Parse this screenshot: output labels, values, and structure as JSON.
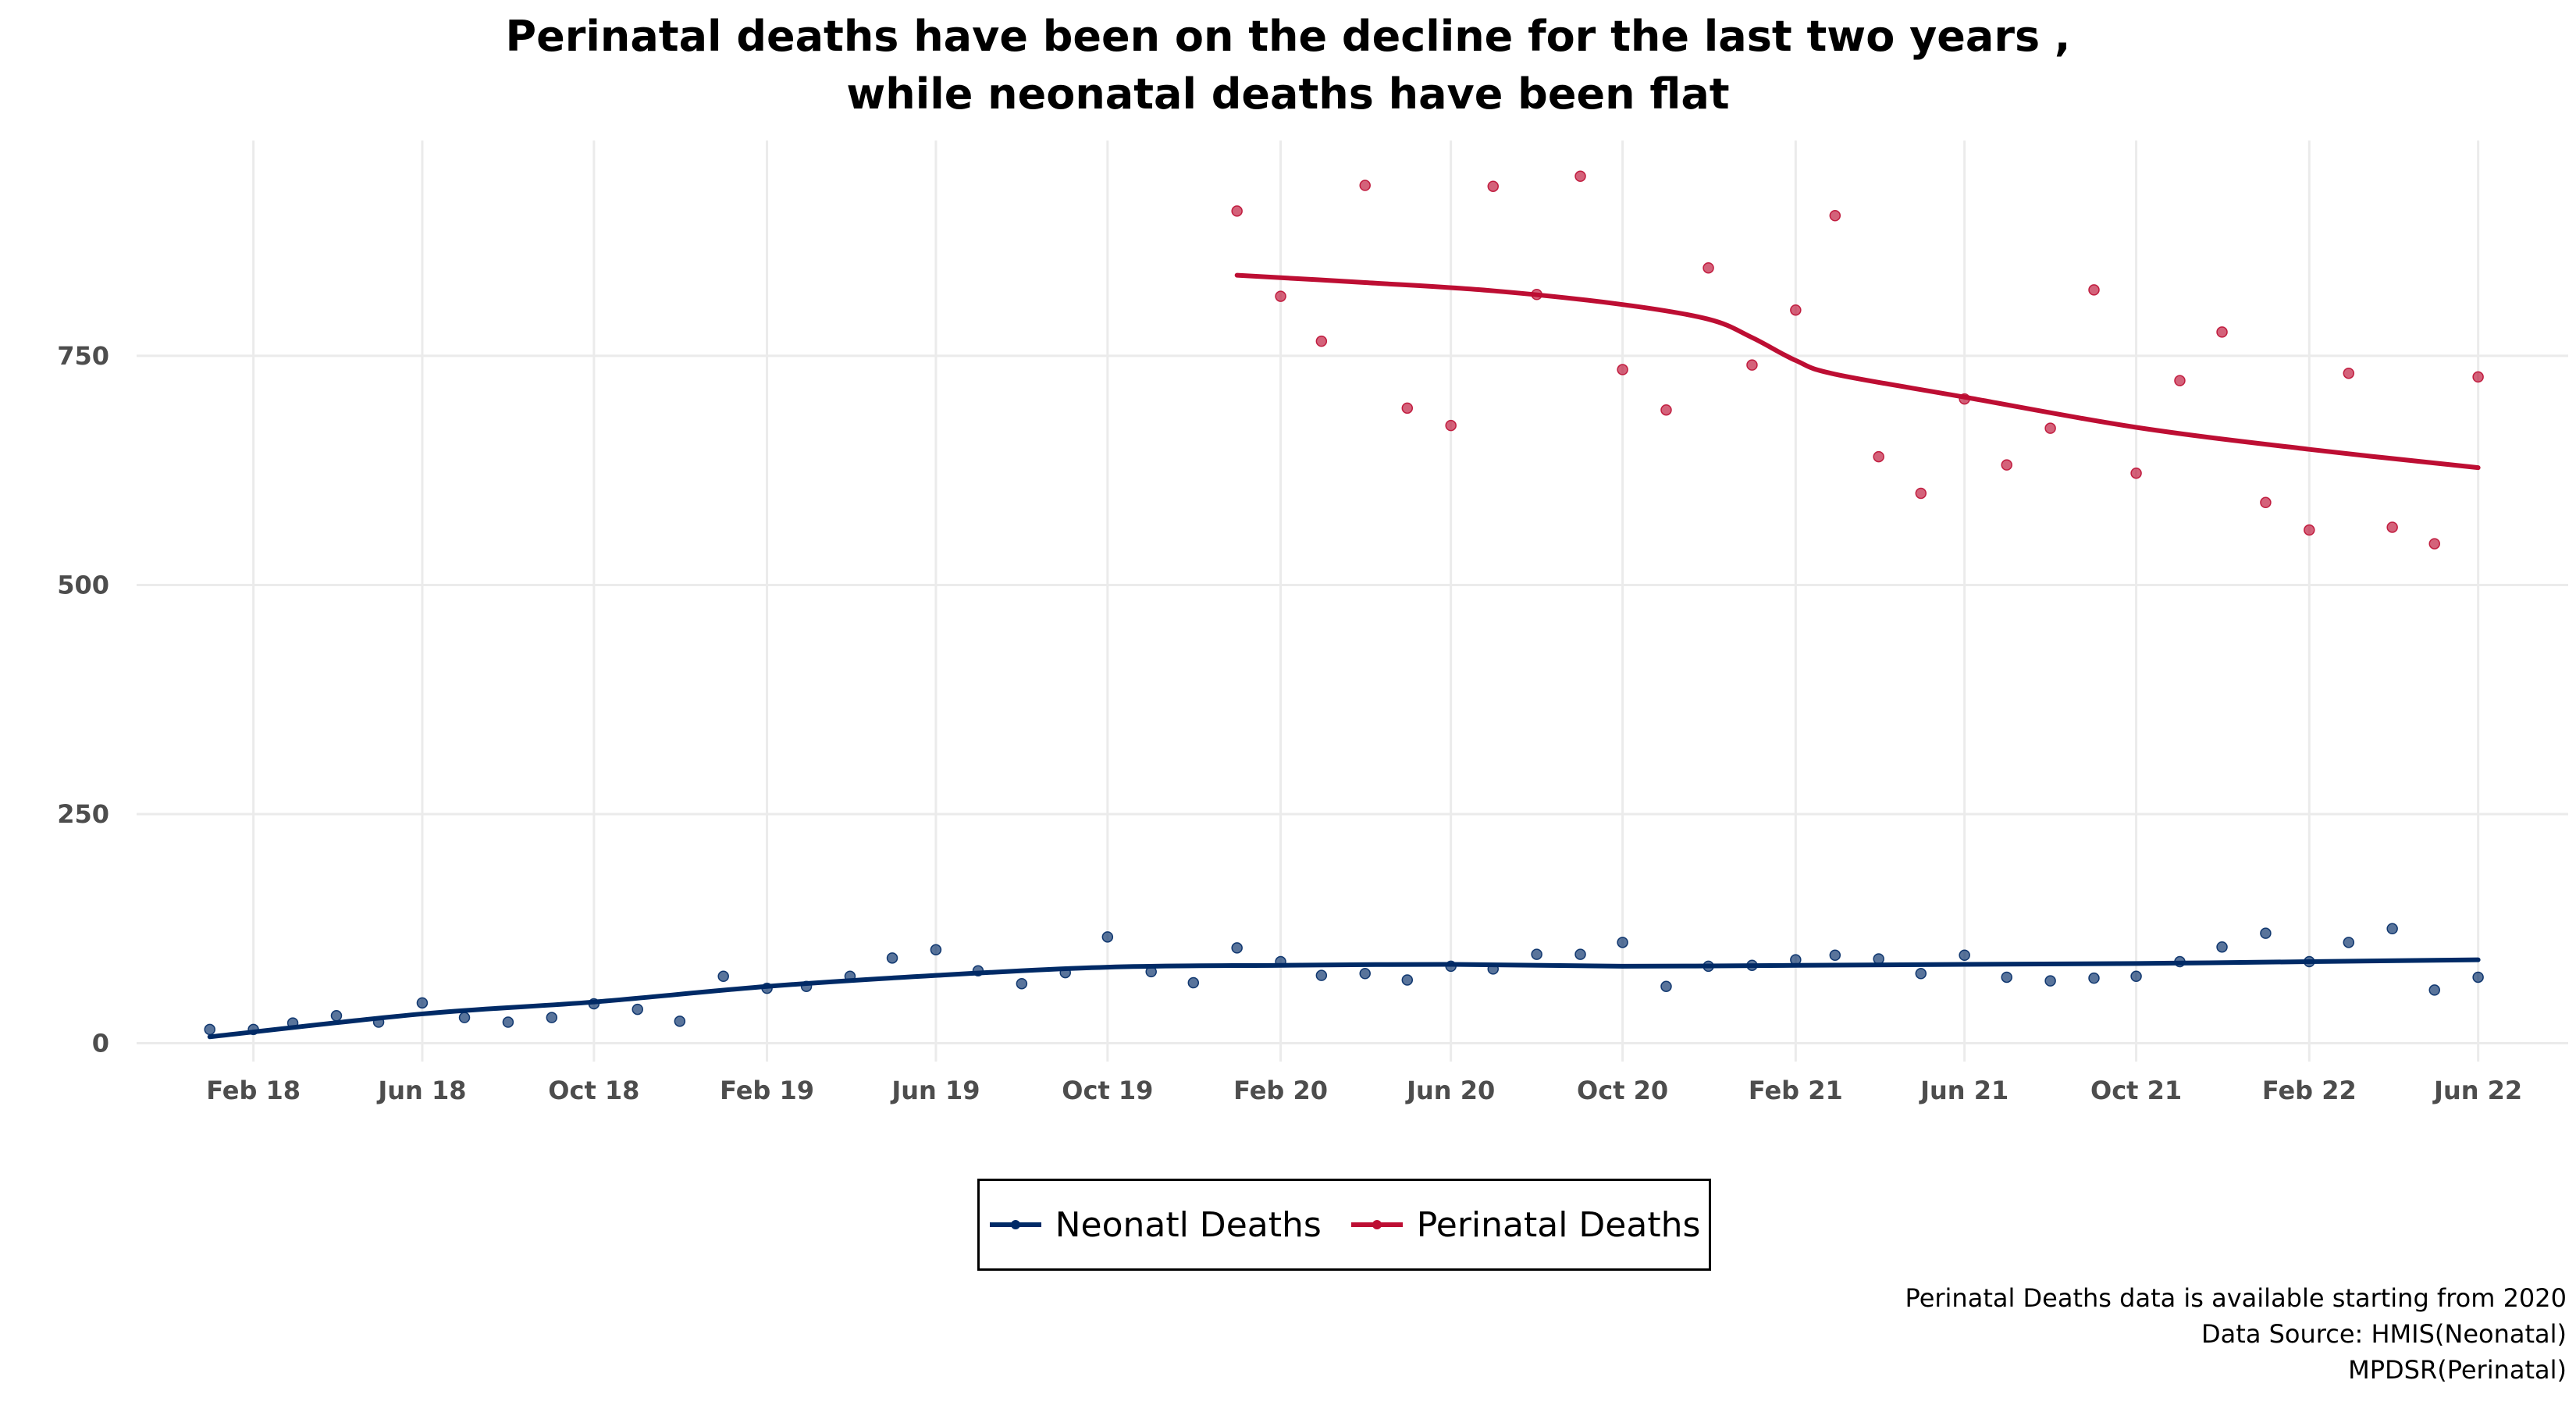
{
  "chart_data": {
    "type": "line",
    "title_lines": [
      "Perinatal deaths have been on the decline for the last two years ,",
      "while neonatal deaths have been flat"
    ],
    "xlabel": "",
    "ylabel": "",
    "x_tick_labels": [
      "Feb 18",
      "Jun 18",
      "Oct 18",
      "Feb 19",
      "Jun 19",
      "Oct 19",
      "Feb 20",
      "Jun 20",
      "Oct 20",
      "Feb 21",
      "Jun 21",
      "Oct 21",
      "Feb 22",
      "Jun 22"
    ],
    "y_ticks": [
      0,
      250,
      500,
      750
    ],
    "ylim": [
      -20,
      985
    ],
    "xlim": [
      "2017-11-10",
      "2022-08-04"
    ],
    "grid": true,
    "legend_position": "bottom",
    "series": [
      {
        "name": "Neonatl Deaths",
        "color": "#002a66",
        "points": [
          [
            "2018-01-01",
            15
          ],
          [
            "2018-02-01",
            15
          ],
          [
            "2018-03-01",
            22
          ],
          [
            "2018-04-01",
            30
          ],
          [
            "2018-05-01",
            23
          ],
          [
            "2018-06-01",
            44
          ],
          [
            "2018-07-01",
            28
          ],
          [
            "2018-08-01",
            23
          ],
          [
            "2018-09-01",
            28
          ],
          [
            "2018-10-01",
            43
          ],
          [
            "2018-11-01",
            37
          ],
          [
            "2018-12-01",
            24
          ],
          [
            "2019-01-01",
            73
          ],
          [
            "2019-02-01",
            60
          ],
          [
            "2019-03-01",
            62
          ],
          [
            "2019-04-01",
            73
          ],
          [
            "2019-05-01",
            93
          ],
          [
            "2019-06-01",
            102
          ],
          [
            "2019-07-01",
            79
          ],
          [
            "2019-08-01",
            65
          ],
          [
            "2019-09-01",
            77
          ],
          [
            "2019-10-01",
            116
          ],
          [
            "2019-11-01",
            78
          ],
          [
            "2019-12-01",
            66
          ],
          [
            "2020-01-01",
            104
          ],
          [
            "2020-02-01",
            89
          ],
          [
            "2020-03-01",
            74
          ],
          [
            "2020-04-01",
            76
          ],
          [
            "2020-05-01",
            69
          ],
          [
            "2020-06-01",
            84
          ],
          [
            "2020-07-01",
            81
          ],
          [
            "2020-08-01",
            97
          ],
          [
            "2020-09-01",
            97
          ],
          [
            "2020-10-01",
            110
          ],
          [
            "2020-11-01",
            62
          ],
          [
            "2020-12-01",
            84
          ],
          [
            "2021-01-01",
            85
          ],
          [
            "2021-02-01",
            91
          ],
          [
            "2021-03-01",
            96
          ],
          [
            "2021-04-01",
            92
          ],
          [
            "2021-05-01",
            76
          ],
          [
            "2021-06-01",
            96
          ],
          [
            "2021-07-01",
            72
          ],
          [
            "2021-08-01",
            68
          ],
          [
            "2021-09-01",
            71
          ],
          [
            "2021-10-01",
            73
          ],
          [
            "2021-11-01",
            89
          ],
          [
            "2021-12-01",
            105
          ],
          [
            "2022-01-01",
            120
          ],
          [
            "2022-02-01",
            89
          ],
          [
            "2022-03-01",
            110
          ],
          [
            "2022-04-01",
            125
          ],
          [
            "2022-05-01",
            58
          ],
          [
            "2022-06-01",
            72
          ]
        ],
        "trend": [
          [
            "2018-01-01",
            7
          ],
          [
            "2018-06-01",
            32
          ],
          [
            "2018-10-01",
            45
          ],
          [
            "2019-02-01",
            62
          ],
          [
            "2019-06-01",
            74
          ],
          [
            "2019-10-01",
            83
          ],
          [
            "2020-02-01",
            85
          ],
          [
            "2020-06-01",
            86
          ],
          [
            "2020-10-01",
            84
          ],
          [
            "2021-02-01",
            85
          ],
          [
            "2021-06-01",
            86
          ],
          [
            "2021-10-01",
            87
          ],
          [
            "2022-02-01",
            89
          ],
          [
            "2022-06-01",
            91
          ]
        ]
      },
      {
        "name": "Perinatal Deaths",
        "color": "#bd0e33",
        "points": [
          [
            "2020-01-01",
            908
          ],
          [
            "2020-02-01",
            815
          ],
          [
            "2020-03-01",
            766
          ],
          [
            "2020-04-01",
            936
          ],
          [
            "2020-05-01",
            693
          ],
          [
            "2020-06-01",
            674
          ],
          [
            "2020-07-01",
            935
          ],
          [
            "2020-08-01",
            817
          ],
          [
            "2020-09-01",
            946
          ],
          [
            "2020-10-01",
            735
          ],
          [
            "2020-11-01",
            691
          ],
          [
            "2020-12-01",
            846
          ],
          [
            "2021-01-01",
            740
          ],
          [
            "2021-02-01",
            800
          ],
          [
            "2021-03-01",
            903
          ],
          [
            "2021-04-01",
            640
          ],
          [
            "2021-05-01",
            600
          ],
          [
            "2021-06-01",
            703
          ],
          [
            "2021-07-01",
            631
          ],
          [
            "2021-08-01",
            671
          ],
          [
            "2021-09-01",
            822
          ],
          [
            "2021-10-01",
            622
          ],
          [
            "2021-11-01",
            723
          ],
          [
            "2021-12-01",
            776
          ],
          [
            "2022-01-01",
            590
          ],
          [
            "2022-02-01",
            560
          ],
          [
            "2022-03-01",
            731
          ],
          [
            "2022-04-01",
            563
          ],
          [
            "2022-05-01",
            545
          ],
          [
            "2022-06-01",
            727
          ]
        ],
        "trend": [
          [
            "2020-01-01",
            838
          ],
          [
            "2020-04-01",
            830
          ],
          [
            "2020-07-01",
            821
          ],
          [
            "2020-10-01",
            806
          ],
          [
            "2020-12-01",
            790
          ],
          [
            "2021-01-01",
            770
          ],
          [
            "2021-02-01",
            745
          ],
          [
            "2021-03-01",
            730
          ],
          [
            "2021-06-01",
            705
          ],
          [
            "2021-10-01",
            672
          ],
          [
            "2022-02-01",
            648
          ],
          [
            "2022-06-01",
            628
          ]
        ]
      }
    ]
  },
  "legend": {
    "items": [
      {
        "label": "Neonatl Deaths",
        "color": "#002a66"
      },
      {
        "label": "Perinatal Deaths",
        "color": "#bd0e33"
      }
    ]
  },
  "caption": {
    "lines": [
      "Perinatal Deaths data is available starting from 2020",
      "Data Source: HMIS(Neonatal)",
      "MPDSR(Perinatal)"
    ]
  }
}
